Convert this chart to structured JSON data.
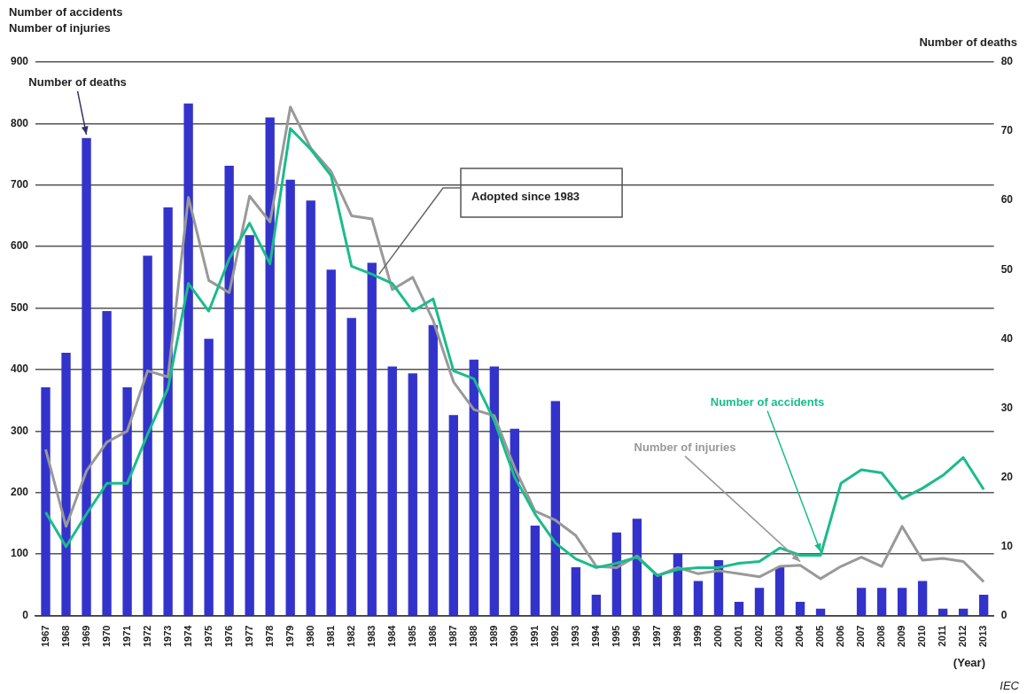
{
  "chart_data": {
    "type": "bar",
    "ylabel": "Number of accidents\nNumber of injuries",
    "y2label": "Number of deaths",
    "xlabel": "(Year)",
    "categories": [
      "1967",
      "1968",
      "1969",
      "1970",
      "1971",
      "1972",
      "1973",
      "1974",
      "1975",
      "1976",
      "1977",
      "1978",
      "1979",
      "1980",
      "1981",
      "1982",
      "1983",
      "1984",
      "1985",
      "1986",
      "1987",
      "1988",
      "1989",
      "1990",
      "1991",
      "1992",
      "1993",
      "1994",
      "1995",
      "1996",
      "1997",
      "1998",
      "1999",
      "2000",
      "2001",
      "2002",
      "2003",
      "2004",
      "2005",
      "2006",
      "2007",
      "2008",
      "2009",
      "2010",
      "2011",
      "2012",
      "2013"
    ],
    "series": [
      {
        "name": "Number of deaths",
        "axis": "y2",
        "color": "#3333cc",
        "values": [
          33,
          38,
          69,
          44,
          33,
          52,
          59,
          74,
          40,
          65,
          55,
          72,
          63,
          60,
          50,
          43,
          51,
          36,
          35,
          42,
          29,
          37,
          36,
          27,
          13,
          31,
          7,
          3,
          12,
          14,
          6,
          9,
          5,
          8,
          2,
          4,
          7,
          2,
          1,
          0,
          4,
          4,
          4,
          5,
          1,
          1,
          3
        ]
      },
      {
        "name": "Number of accidents",
        "type": "line",
        "color": "#1abc8c",
        "values": [
          168,
          112,
          165,
          215,
          215,
          295,
          370,
          540,
          495,
          580,
          638,
          572,
          792,
          758,
          715,
          568,
          555,
          540,
          495,
          515,
          398,
          385,
          317,
          225,
          165,
          118,
          92,
          78,
          85,
          95,
          65,
          75,
          78,
          78,
          85,
          88,
          110,
          98,
          98,
          215,
          237,
          232,
          190,
          207,
          228,
          257,
          205
        ]
      },
      {
        "name": "Number of injuries",
        "type": "line",
        "color": "#999999",
        "values": [
          270,
          145,
          235,
          282,
          300,
          398,
          388,
          680,
          545,
          525,
          682,
          640,
          827,
          760,
          722,
          650,
          645,
          530,
          550,
          480,
          380,
          335,
          325,
          240,
          170,
          155,
          130,
          80,
          78,
          97,
          65,
          78,
          68,
          73,
          68,
          63,
          80,
          82,
          60,
          80,
          95,
          80,
          145,
          90,
          93,
          88,
          55
        ]
      }
    ],
    "ylim": [
      0,
      900
    ],
    "yticks": [
      0,
      100,
      200,
      300,
      400,
      500,
      600,
      700,
      800,
      900
    ],
    "y2lim": [
      0,
      80
    ],
    "y2ticks": [
      0,
      10,
      20,
      30,
      40,
      50,
      60,
      70,
      80
    ],
    "grid": "y",
    "legend": false,
    "marker": "none",
    "line_style": "solid",
    "annotations": [
      {
        "text": "Adopted since 1983",
        "x": "1983",
        "y": 555
      },
      "IEC"
    ]
  }
}
